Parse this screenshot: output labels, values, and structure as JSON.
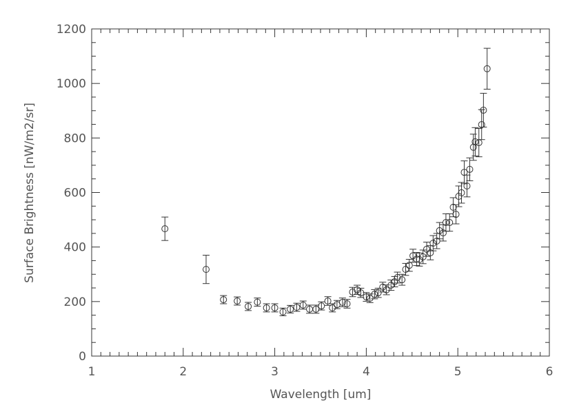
{
  "chart_data": {
    "type": "scatter",
    "title": "",
    "xlabel": "Wavelength [um]",
    "ylabel": "Surface Brightness [nW/m2/sr]",
    "xlim": [
      1,
      6
    ],
    "ylim": [
      0,
      1200
    ],
    "xticks": [
      1,
      2,
      3,
      4,
      5,
      6
    ],
    "yticks": [
      0,
      200,
      400,
      600,
      800,
      1000,
      1200
    ],
    "grid": false,
    "marker": "open-circle",
    "error_bars": true,
    "color": "#333333",
    "x": [
      1.8,
      2.25,
      2.44,
      2.59,
      2.71,
      2.81,
      2.91,
      3.0,
      3.09,
      3.17,
      3.24,
      3.31,
      3.38,
      3.45,
      3.51,
      3.58,
      3.63,
      3.68,
      3.74,
      3.79,
      3.85,
      3.9,
      3.94,
      4.0,
      4.04,
      4.09,
      4.13,
      4.18,
      4.22,
      4.27,
      4.31,
      4.34,
      4.39,
      4.43,
      4.47,
      4.51,
      4.55,
      4.58,
      4.62,
      4.66,
      4.7,
      4.73,
      4.77,
      4.8,
      4.84,
      4.87,
      4.91,
      4.95,
      4.98,
      5.01,
      5.04,
      5.07,
      5.1,
      5.13,
      5.17,
      5.19,
      5.23,
      5.26,
      5.28,
      5.32
    ],
    "y": [
      467,
      318,
      207,
      202,
      182,
      198,
      177,
      177,
      162,
      172,
      179,
      187,
      172,
      172,
      184,
      202,
      177,
      189,
      197,
      192,
      235,
      243,
      232,
      217,
      212,
      227,
      232,
      253,
      243,
      260,
      273,
      288,
      280,
      318,
      333,
      368,
      356,
      354,
      364,
      392,
      379,
      414,
      422,
      460,
      452,
      490,
      490,
      546,
      520,
      586,
      599,
      674,
      624,
      685,
      766,
      786,
      783,
      849,
      902,
      1054
    ],
    "yerr": [
      43,
      52,
      15,
      15,
      15,
      15,
      15,
      15,
      14,
      14,
      15,
      15,
      15,
      15,
      15,
      16,
      15,
      15,
      16,
      16,
      17,
      17,
      17,
      16,
      16,
      17,
      17,
      18,
      18,
      19,
      19,
      20,
      20,
      22,
      22,
      24,
      24,
      24,
      25,
      26,
      26,
      28,
      28,
      30,
      30,
      32,
      32,
      35,
      35,
      38,
      38,
      42,
      40,
      42,
      48,
      52,
      52,
      55,
      62,
      75
    ]
  }
}
